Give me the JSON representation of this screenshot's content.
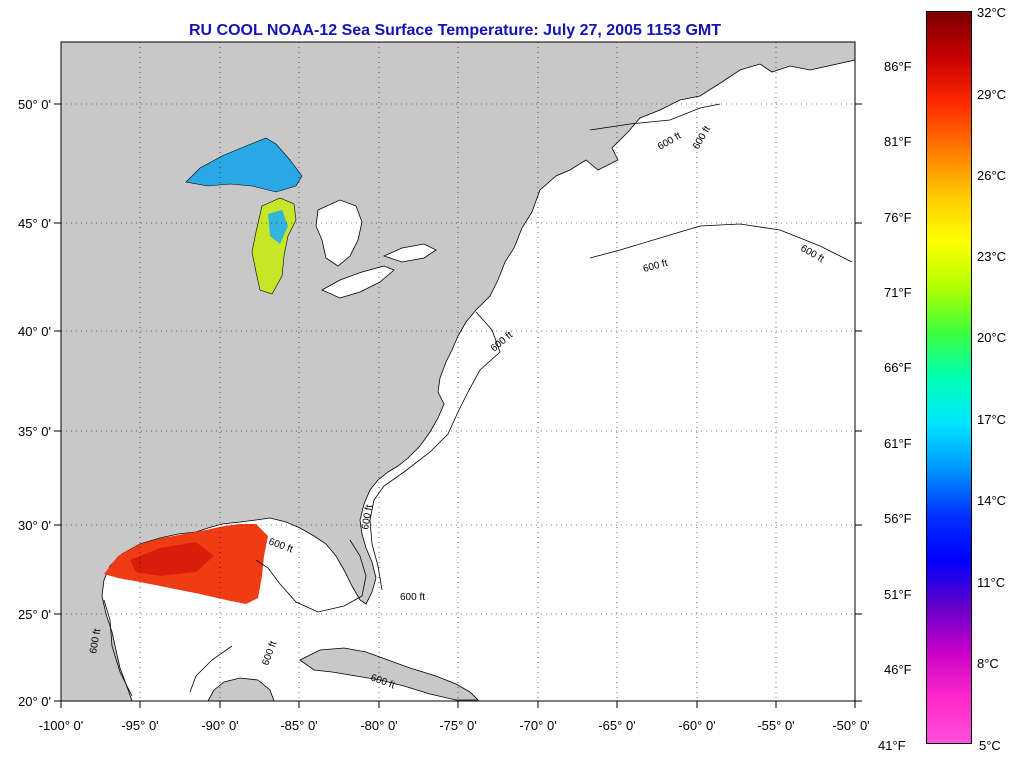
{
  "title": "RU COOL  NOAA-12  Sea Surface Temperature:  July 27, 2005 1153 GMT",
  "map": {
    "lon_ticks": [
      -100,
      -95,
      -90,
      -85,
      -80,
      -75,
      -70,
      -65,
      -60,
      -55,
      -50
    ],
    "lat_ticks": [
      20,
      25,
      30,
      35,
      40,
      45,
      50
    ],
    "lon_labels": [
      "-100° 0'",
      "-95° 0'",
      "-90° 0'",
      "-85° 0'",
      "-80° 0'",
      "-75° 0'",
      "-70° 0'",
      "-65° 0'",
      "-60° 0'",
      "-55° 0'",
      "-50° 0'"
    ],
    "lat_labels": [
      "20° 0'",
      "25° 0'",
      "30° 0'",
      "35° 0'",
      "40° 0'",
      "45° 0'",
      "50° 0'"
    ],
    "isobath_labels": [
      "600 ft",
      "600 ft",
      "600 ft",
      "600 ft",
      "600 ft",
      "600 ft",
      "600 ft",
      "600 ft",
      "600 ft",
      "600 ft",
      "600 ft"
    ]
  },
  "colorbar": {
    "celsius_labels": [
      "32°C",
      "29°C",
      "26°C",
      "23°C",
      "20°C",
      "17°C",
      "14°C",
      "11°C",
      "8°C",
      "5°C"
    ],
    "fahrenheit_labels": [
      "86°F",
      "81°F",
      "76°F",
      "71°F",
      "66°F",
      "61°F",
      "56°F",
      "51°F",
      "46°F",
      "41°F"
    ],
    "colors": [
      "#7a0000",
      "#c80000",
      "#ff2a00",
      "#ff7a00",
      "#ffc800",
      "#ffff00",
      "#b4ff00",
      "#3cff3c",
      "#00ffb4",
      "#00e6ff",
      "#0096ff",
      "#0032ff",
      "#0000ff",
      "#6400c8",
      "#c800c8",
      "#ff28c8",
      "#ff50dc"
    ]
  },
  "colors": {
    "land": "#c8c8c8",
    "ocean": "#ffffff",
    "title": "#1414b4",
    "gulf_sst": "#f03c14",
    "lake_sst": "#2aa8e6"
  }
}
